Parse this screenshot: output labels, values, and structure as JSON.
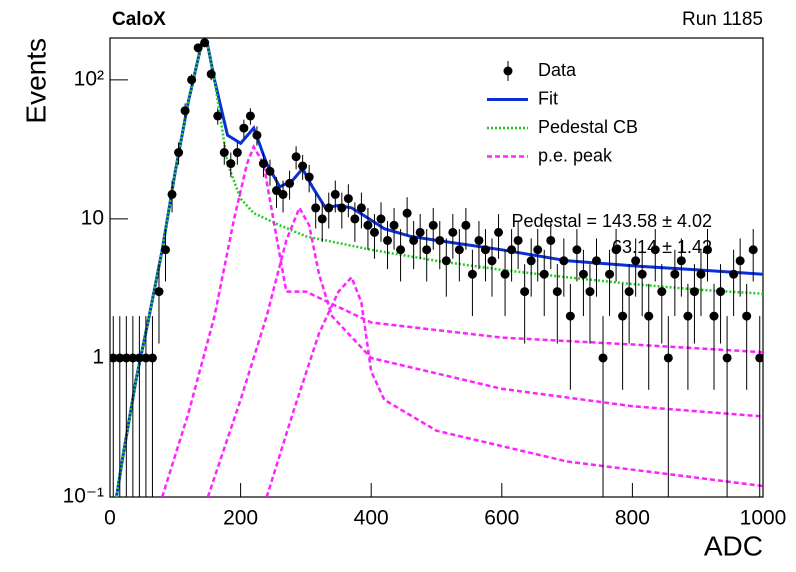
{
  "chart_data": {
    "type": "scatter",
    "title": "CaloX",
    "subtitle": "Run 1185",
    "xlabel": "ADC",
    "ylabel": "Events",
    "log_y": true,
    "xlim": [
      0,
      1000
    ],
    "ylim": [
      0.1,
      200
    ],
    "xticks": [
      0,
      200,
      400,
      600,
      800,
      1000
    ],
    "yticks": [
      {
        "value": 0.1,
        "label": "10⁻¹"
      },
      1,
      10,
      {
        "value": 100,
        "label": "10²"
      }
    ],
    "legend": "top-right",
    "annotations": [
      "Pedestal = 143.58 ± 4.02",
      "63.14 ± 1.42"
    ],
    "series": [
      {
        "name": "Data",
        "style": "points",
        "color": "#000000",
        "x": [
          5,
          15,
          25,
          35,
          45,
          55,
          65,
          75,
          85,
          95,
          105,
          115,
          125,
          135,
          145,
          155,
          165,
          175,
          185,
          195,
          205,
          215,
          225,
          235,
          245,
          255,
          265,
          275,
          285,
          295,
          305,
          315,
          325,
          335,
          345,
          355,
          365,
          375,
          385,
          395,
          405,
          415,
          425,
          435,
          445,
          455,
          465,
          475,
          485,
          495,
          505,
          515,
          525,
          535,
          545,
          555,
          565,
          575,
          585,
          595,
          605,
          615,
          625,
          635,
          645,
          655,
          665,
          675,
          685,
          695,
          705,
          715,
          725,
          735,
          745,
          755,
          765,
          775,
          785,
          795,
          805,
          815,
          825,
          835,
          845,
          855,
          865,
          875,
          885,
          895,
          905,
          915,
          925,
          935,
          945,
          955,
          965,
          975,
          985,
          995
        ],
        "values": [
          1,
          1,
          1,
          1,
          1,
          1,
          1,
          3,
          6,
          15,
          30,
          60,
          100,
          170,
          185,
          110,
          55,
          30,
          25,
          30,
          45,
          55,
          40,
          25,
          22,
          16,
          15,
          18,
          28,
          24,
          20,
          12,
          10,
          12,
          15,
          12,
          14,
          10,
          12,
          9,
          8,
          10,
          7,
          9,
          6,
          11,
          7,
          8,
          6,
          9,
          7,
          5,
          8,
          6,
          9,
          4,
          7,
          6,
          5,
          8,
          4,
          6,
          7,
          3,
          5,
          6,
          4,
          7,
          3,
          5,
          2,
          6,
          4,
          3,
          5,
          1,
          4,
          6,
          2,
          3,
          5,
          4,
          2,
          6,
          3,
          1,
          4,
          5,
          2,
          3,
          4,
          6,
          2,
          3,
          1,
          4,
          5,
          2,
          6,
          1
        ],
        "errors": [
          1,
          1,
          1,
          1,
          1,
          1,
          1,
          1.73,
          2.45,
          3.87,
          5.48,
          7.75,
          10,
          13.04,
          13.6,
          10.49,
          7.42,
          5.48,
          5,
          5.48,
          6.71,
          7.42,
          6.32,
          5,
          4.69,
          4,
          3.87,
          4.24,
          5.29,
          4.9,
          4.47,
          3.46,
          3.16,
          3.46,
          3.87,
          3.46,
          3.74,
          3.16,
          3.46,
          3,
          2.83,
          3.16,
          2.65,
          3,
          2.45,
          3.32,
          2.65,
          2.83,
          2.45,
          3,
          2.65,
          2.24,
          2.83,
          2.45,
          3,
          2,
          2.65,
          2.45,
          2.24,
          2.83,
          2,
          2.45,
          2.65,
          1.73,
          2.24,
          2.45,
          2,
          2.65,
          1.73,
          2.24,
          1.41,
          2.45,
          2,
          1.73,
          2.24,
          1,
          2,
          2.45,
          1.41,
          1.73,
          2.24,
          2,
          1.41,
          2.45,
          1.73,
          1,
          2,
          2.24,
          1.41,
          1.73,
          2,
          2.45,
          1.41,
          1.73,
          1,
          2,
          2.24,
          1.41,
          2.45,
          1
        ]
      },
      {
        "name": "Fit",
        "style": "solid",
        "color": "#0a2fd6",
        "x": [
          10,
          20,
          40,
          60,
          80,
          100,
          120,
          140,
          150,
          160,
          180,
          200,
          220,
          240,
          260,
          280,
          295,
          310,
          330,
          350,
          370,
          390,
          420,
          460,
          500,
          600,
          700,
          800,
          900,
          1000
        ],
        "values": [
          0.1,
          0.2,
          0.7,
          2,
          6,
          22,
          70,
          180,
          175,
          100,
          40,
          35,
          45,
          25,
          17,
          19,
          23,
          17,
          12,
          12.5,
          12,
          10.5,
          8.5,
          7.5,
          7,
          6,
          5,
          4.6,
          4.3,
          4
        ]
      },
      {
        "name": "Pedestal CB",
        "style": "dotted",
        "color": "#22cc22",
        "x": [
          10,
          20,
          40,
          60,
          80,
          100,
          120,
          140,
          150,
          160,
          180,
          200,
          220,
          260,
          300,
          400,
          500,
          600,
          700,
          800,
          900,
          1000
        ],
        "values": [
          0.1,
          0.2,
          0.7,
          2,
          6,
          22,
          70,
          180,
          175,
          100,
          25,
          14,
          11,
          9,
          7.5,
          6,
          5,
          4.3,
          3.8,
          3.4,
          3.1,
          2.9
        ]
      },
      {
        "name": "p.e. peak",
        "style": "dashed",
        "color": "#ff22ff",
        "x": [
          80,
          120,
          160,
          190,
          210,
          220,
          235,
          250,
          270,
          300,
          400,
          600,
          800,
          1000
        ],
        "values": [
          0.1,
          0.4,
          2,
          10,
          25,
          33,
          25,
          10,
          3,
          3,
          1.8,
          1.4,
          1.25,
          1.1
        ]
      },
      {
        "style": "dashed",
        "color": "#ff22ff",
        "x": [
          150,
          200,
          240,
          270,
          290,
          305,
          320,
          340,
          400,
          600,
          800,
          1000
        ],
        "values": [
          0.1,
          0.5,
          2,
          7,
          12,
          9,
          4,
          2,
          1,
          0.6,
          0.45,
          0.38
        ]
      },
      {
        "style": "dashed",
        "color": "#ff22ff",
        "x": [
          240,
          280,
          320,
          350,
          370,
          385,
          400,
          420,
          500,
          700,
          1000
        ],
        "values": [
          0.1,
          0.4,
          1.5,
          3,
          3.8,
          2.5,
          0.8,
          0.5,
          0.3,
          0.18,
          0.12
        ]
      }
    ]
  }
}
